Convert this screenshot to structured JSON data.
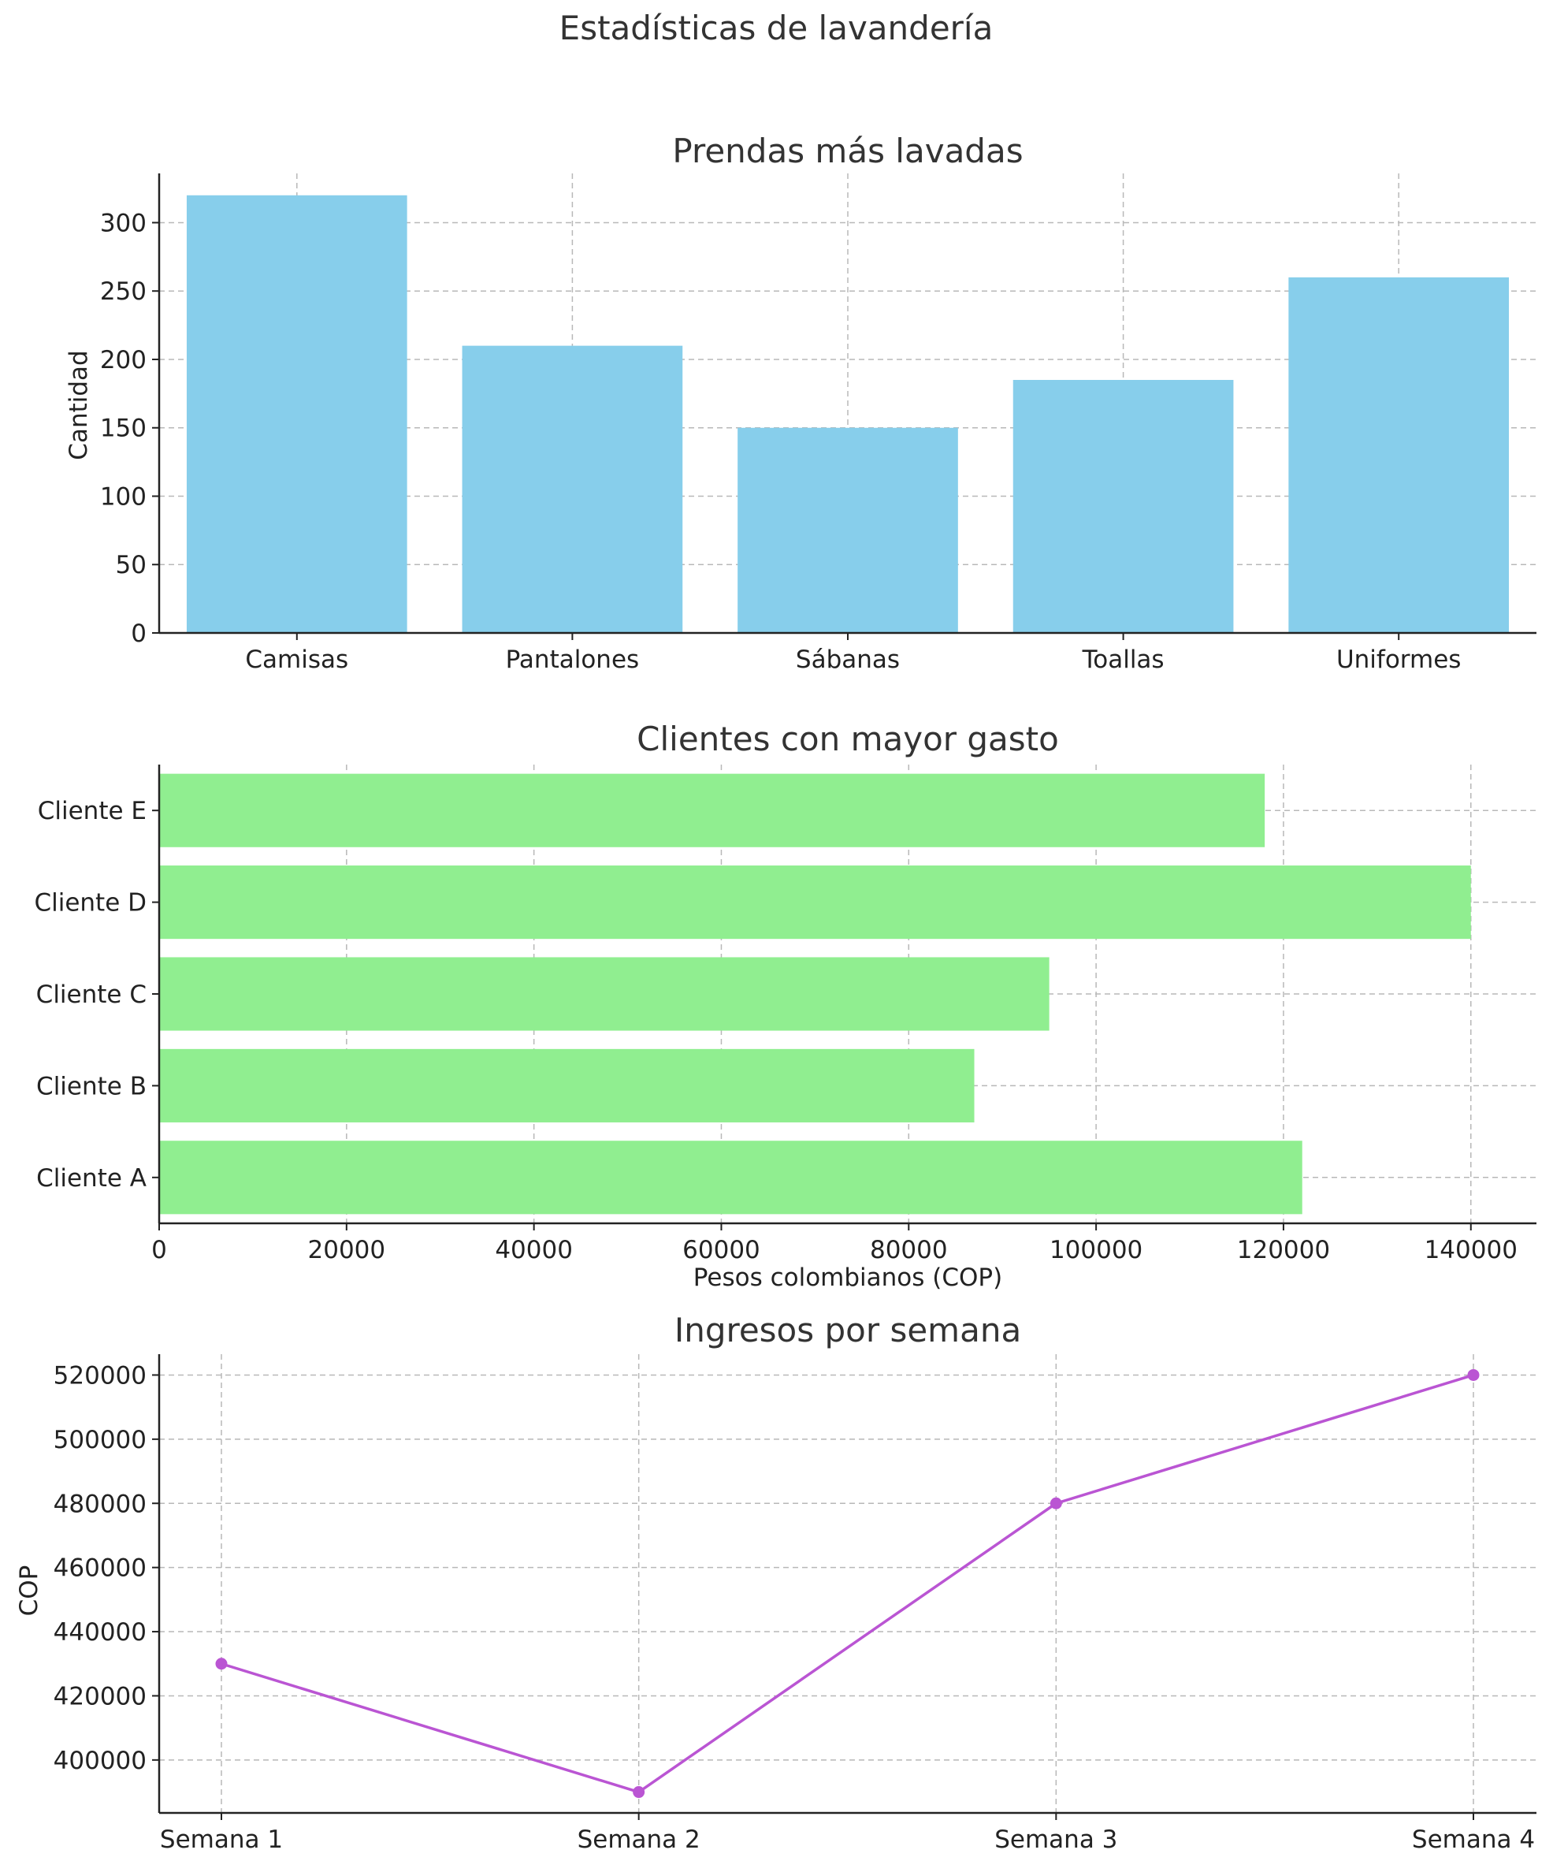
{
  "figure": {
    "title": "Estadísticas de lavandería"
  },
  "chart_data": [
    {
      "type": "bar",
      "title": "Prendas más lavadas",
      "xlabel": "",
      "ylabel": "Cantidad",
      "categories": [
        "Camisas",
        "Pantalones",
        "Sábanas",
        "Toallas",
        "Uniformes"
      ],
      "values": [
        320,
        210,
        150,
        185,
        260
      ],
      "ylim": [
        0,
        336
      ],
      "yticks": [
        0,
        50,
        100,
        150,
        200,
        250,
        300
      ],
      "grid": true,
      "color": "#87CEEB"
    },
    {
      "type": "bar",
      "orientation": "horizontal",
      "title": "Clientes con mayor gasto",
      "xlabel": "Pesos colombianos (COP)",
      "ylabel": "",
      "categories": [
        "Cliente A",
        "Cliente B",
        "Cliente C",
        "Cliente D",
        "Cliente E"
      ],
      "values": [
        122000,
        87000,
        95000,
        140000,
        118000
      ],
      "xlim": [
        0,
        147000
      ],
      "xticks": [
        0,
        20000,
        40000,
        60000,
        80000,
        100000,
        120000,
        140000
      ],
      "grid": true,
      "color": "#90EE90"
    },
    {
      "type": "line",
      "title": "Ingresos por semana",
      "xlabel": "",
      "ylabel": "COP",
      "categories": [
        "Semana 1",
        "Semana 2",
        "Semana 3",
        "Semana 4"
      ],
      "values": [
        430000,
        390000,
        480000,
        520000
      ],
      "ylim": [
        383500,
        526500
      ],
      "yticks": [
        400000,
        420000,
        440000,
        460000,
        480000,
        500000,
        520000
      ],
      "grid": true,
      "marker": "o",
      "color": "#BA55D3"
    }
  ]
}
